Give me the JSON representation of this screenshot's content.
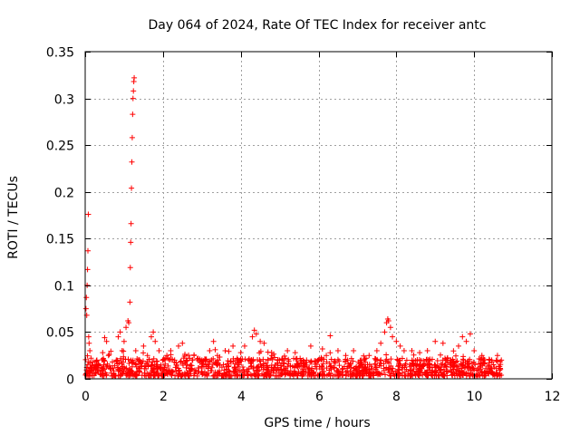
{
  "chart_data": {
    "type": "scatter",
    "title": "Day 064 of 2024, Rate Of TEC Index for receiver antc",
    "xlabel": "GPS time / hours",
    "ylabel": "ROTI / TECUs",
    "xlim": [
      0,
      12
    ],
    "ylim": [
      0,
      0.35
    ],
    "xticks": [
      0,
      2,
      4,
      6,
      8,
      10,
      12
    ],
    "xtick_labels": [
      "0",
      "2",
      "4",
      "6",
      "8",
      "10",
      "12"
    ],
    "yticks": [
      0,
      0.05,
      0.1,
      0.15,
      0.2,
      0.25,
      0.3,
      0.35
    ],
    "ytick_labels": [
      "0",
      "0.05",
      "0.1",
      "0.15",
      "0.2",
      "0.25",
      "0.3",
      "0.35"
    ],
    "grid": true,
    "marker": "plus",
    "color": "#ff0000",
    "series": [
      {
        "name": "ROTI",
        "points": [
          [
            0.02,
            0.075
          ],
          [
            0.03,
            0.087
          ],
          [
            0.04,
            0.068
          ],
          [
            0.05,
            0.1
          ],
          [
            0.06,
            0.117
          ],
          [
            0.07,
            0.137
          ],
          [
            0.08,
            0.176
          ],
          [
            0.09,
            0.045
          ],
          [
            0.1,
            0.038
          ],
          [
            0.12,
            0.03
          ],
          [
            0.15,
            0.022
          ],
          [
            0.2,
            0.018
          ],
          [
            0.25,
            0.015
          ],
          [
            0.3,
            0.02
          ],
          [
            0.35,
            0.014
          ],
          [
            0.4,
            0.012
          ],
          [
            0.45,
            0.028
          ],
          [
            0.5,
            0.044
          ],
          [
            0.55,
            0.04
          ],
          [
            0.6,
            0.025
          ],
          [
            0.7,
            0.018
          ],
          [
            0.8,
            0.02
          ],
          [
            0.85,
            0.045
          ],
          [
            0.9,
            0.05
          ],
          [
            0.95,
            0.03
          ],
          [
            1.0,
            0.04
          ],
          [
            1.05,
            0.055
          ],
          [
            1.1,
            0.062
          ],
          [
            1.12,
            0.06
          ],
          [
            1.15,
            0.082
          ],
          [
            1.16,
            0.119
          ],
          [
            1.17,
            0.146
          ],
          [
            1.18,
            0.166
          ],
          [
            1.19,
            0.204
          ],
          [
            1.2,
            0.232
          ],
          [
            1.21,
            0.258
          ],
          [
            1.22,
            0.283
          ],
          [
            1.23,
            0.3
          ],
          [
            1.24,
            0.308
          ],
          [
            1.25,
            0.318
          ],
          [
            1.26,
            0.322
          ],
          [
            1.3,
            0.03
          ],
          [
            1.4,
            0.02
          ],
          [
            1.5,
            0.035
          ],
          [
            1.6,
            0.025
          ],
          [
            1.7,
            0.045
          ],
          [
            1.75,
            0.05
          ],
          [
            1.8,
            0.04
          ],
          [
            1.9,
            0.03
          ],
          [
            2.0,
            0.02
          ],
          [
            2.1,
            0.025
          ],
          [
            2.2,
            0.03
          ],
          [
            2.3,
            0.02
          ],
          [
            2.4,
            0.035
          ],
          [
            2.5,
            0.038
          ],
          [
            2.6,
            0.02
          ],
          [
            2.8,
            0.025
          ],
          [
            3.0,
            0.02
          ],
          [
            3.2,
            0.03
          ],
          [
            3.3,
            0.04
          ],
          [
            3.4,
            0.025
          ],
          [
            3.6,
            0.03
          ],
          [
            3.8,
            0.035
          ],
          [
            3.9,
            0.02
          ],
          [
            4.0,
            0.028
          ],
          [
            4.1,
            0.035
          ],
          [
            4.2,
            0.02
          ],
          [
            4.3,
            0.045
          ],
          [
            4.35,
            0.052
          ],
          [
            4.4,
            0.048
          ],
          [
            4.5,
            0.04
          ],
          [
            4.6,
            0.038
          ],
          [
            4.7,
            0.02
          ],
          [
            4.8,
            0.025
          ],
          [
            5.0,
            0.02
          ],
          [
            5.2,
            0.03
          ],
          [
            5.4,
            0.028
          ],
          [
            5.6,
            0.02
          ],
          [
            5.8,
            0.035
          ],
          [
            6.0,
            0.02
          ],
          [
            6.1,
            0.032
          ],
          [
            6.2,
            0.025
          ],
          [
            6.3,
            0.046
          ],
          [
            6.5,
            0.03
          ],
          [
            6.7,
            0.025
          ],
          [
            6.9,
            0.03
          ],
          [
            7.1,
            0.02
          ],
          [
            7.3,
            0.025
          ],
          [
            7.5,
            0.03
          ],
          [
            7.6,
            0.038
          ],
          [
            7.7,
            0.05
          ],
          [
            7.75,
            0.06
          ],
          [
            7.78,
            0.064
          ],
          [
            7.8,
            0.062
          ],
          [
            7.85,
            0.055
          ],
          [
            7.9,
            0.045
          ],
          [
            8.0,
            0.04
          ],
          [
            8.1,
            0.035
          ],
          [
            8.2,
            0.03
          ],
          [
            8.4,
            0.03
          ],
          [
            8.6,
            0.028
          ],
          [
            8.8,
            0.03
          ],
          [
            9.0,
            0.04
          ],
          [
            9.2,
            0.038
          ],
          [
            9.4,
            0.02
          ],
          [
            9.6,
            0.035
          ],
          [
            9.7,
            0.045
          ],
          [
            9.8,
            0.04
          ],
          [
            9.9,
            0.048
          ],
          [
            10.0,
            0.03
          ],
          [
            10.2,
            0.025
          ],
          [
            10.4,
            0.02
          ],
          [
            10.5,
            0.015
          ],
          [
            10.6,
            0.025
          ],
          [
            10.7,
            0.02
          ]
        ]
      }
    ],
    "band": {
      "x_range": [
        0,
        10.7
      ],
      "y_min": 0.003,
      "y_max": 0.022,
      "density": 1300
    }
  }
}
